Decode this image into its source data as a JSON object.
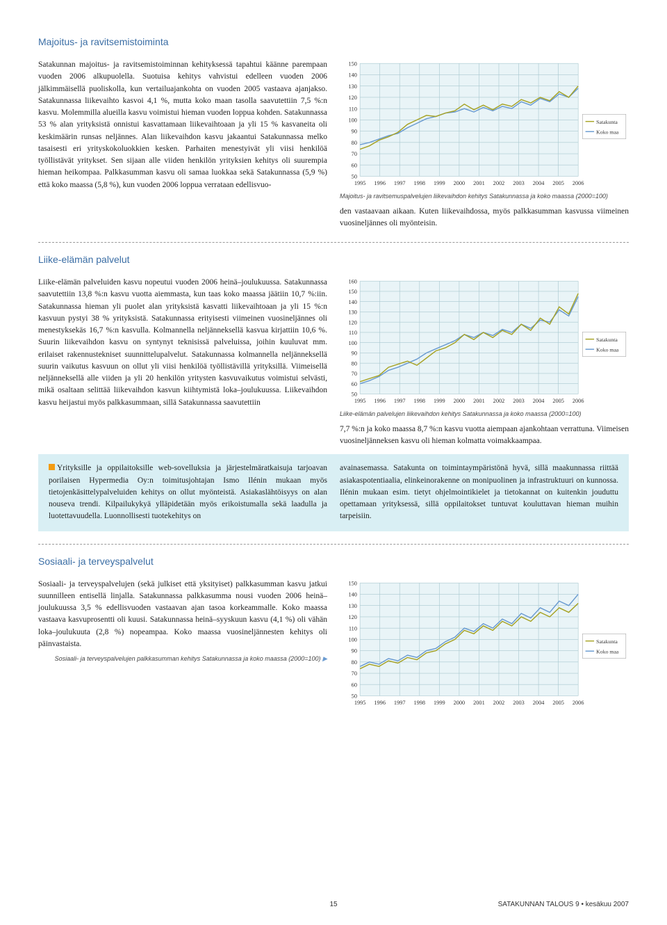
{
  "page": {
    "number": "15",
    "footer_right": "SATAKUNNAN TALOUS 9 • kesäkuu 2007"
  },
  "legend": {
    "series1": "Satakunta",
    "series2": "Koko maa"
  },
  "chart_common": {
    "xlabels": [
      "1995",
      "1996",
      "1997",
      "1998",
      "1999",
      "2000",
      "2001",
      "2002",
      "2003",
      "2004",
      "2005",
      "2006"
    ],
    "ymin": 50,
    "ymax_a": 150,
    "ymax_b": 160,
    "ystep": 10,
    "bg_color": "#e9f4f7",
    "grid_color": "#a9c8cf",
    "series1_color": "#a7a325",
    "series2_color": "#6a9bd1",
    "axis_fontsize": 8,
    "line_width": 1.4
  },
  "sec1": {
    "title": "Majoitus- ja ravitsemistoiminta",
    "body": "Satakunnan majoitus- ja ravitsemistoiminnan kehityksessä tapahtui käänne parempaan vuoden 2006 alkupuolella. Suotuisa kehitys vahvistui edelleen vuoden 2006 jälkimmäisellä puoliskolla, kun vertailuajankohta on vuoden 2005 vastaava ajanjakso. Satakunnassa liikevaihto kasvoi 4,1 %, mutta koko maan tasolla saavutettiin 7,5 %:n kasvu. Molemmilla alueilla kasvu voimistui hieman vuoden loppua kohden. Satakunnassa 53 % alan yrityksistä onnistui kasvattamaan liikevaihtoaan ja yli 15 % kasvaneita oli keskimäärin runsas neljännes. Alan liikevaihdon kasvu jakaantui Satakunnassa melko tasaisesti eri yrityskokoluokkien kesken. Parhaiten menestyivät yli viisi henkilöä työllistävät yritykset. Sen sijaan alle viiden henkilön yrityksien kehitys oli suurempia hieman heikompaa. Palkkasumman kasvu oli samaa luokkaa sekä Satakunnassa (5,9 %) että koko maassa (5,8 %), kun vuoden 2006 loppua verrataan edellisvuo-",
    "after": "den vastaavaan aikaan. Kuten liikevaihdossa, myös palkkasumman kasvussa viimeinen vuosineljännes oli myönteisin.",
    "caption": "Majoitus- ja ravitsemuspalvelujen liikevaihdon kehitys Satakunnassa ja koko maassa (2000=100)",
    "series1": [
      74,
      77,
      82,
      85,
      89,
      96,
      100,
      104,
      103,
      106,
      108,
      114,
      109,
      113,
      109,
      114,
      112,
      118,
      115,
      120,
      117,
      125,
      120,
      130
    ],
    "series2": [
      78,
      80,
      83,
      86,
      88,
      93,
      97,
      101,
      103,
      106,
      107,
      110,
      107,
      111,
      108,
      112,
      110,
      116,
      113,
      119,
      116,
      123,
      120,
      128
    ]
  },
  "sec2": {
    "title": "Liike-elämän palvelut",
    "body": "Liike-elämän palveluiden kasvu nopeutui vuoden 2006 heinä–joulukuussa. Satakunnassa saavutettiin 13,8 %:n kasvu vuotta aiemmasta, kun taas koko maassa jäätiin 10,7 %:iin. Satakunnassa hieman yli puolet alan yrityksistä kasvatti liikevaihtoaan ja yli 15 %:n kasvuun pystyi 38 % yrityksistä. Satakunnassa erityisesti viimeinen vuosineljännes oli menestyksekäs 16,7 %:n kasvulla. Kolmannella neljänneksellä kasvua kirjattiin 10,6 %. Suurin liikevaihdon kasvu on syntynyt teknisissä palveluissa, joihin kuuluvat mm. erilaiset rakennustekniset suunnittelupalvelut. Satakunnassa kolmannella neljänneksellä suurin vaikutus kasvuun on ollut yli viisi henkilöä työllistävillä yrityksillä. Viimeisellä neljänneksellä alle viiden ja yli 20 henkilön yritysten kasvuvaikutus voimistui selvästi, mikä osaltaan selittää liikevaihdon kasvun kiihtymistä loka–joulukuussa. Liikevaihdon kasvu heijastui myös palkkasummaan, sillä Satakunnassa saavutettiin",
    "after": "7,7 %:n ja koko maassa 8,7 %:n kasvu vuotta aiempaan ajankohtaan verrattuna. Viimeisen vuosineljänneksen kasvu oli hieman kolmatta voimakkaampaa.",
    "caption": "Liike-elämän palvelujen liikevaihdon kehitys Satakunnassa ja koko maassa (2000=100)",
    "series1": [
      62,
      65,
      68,
      76,
      79,
      82,
      78,
      85,
      92,
      95,
      100,
      108,
      103,
      110,
      105,
      112,
      108,
      118,
      112,
      124,
      118,
      135,
      128,
      148
    ],
    "series2": [
      60,
      63,
      67,
      73,
      76,
      80,
      84,
      90,
      94,
      98,
      102,
      108,
      105,
      110,
      107,
      113,
      110,
      118,
      114,
      122,
      120,
      132,
      126,
      145
    ]
  },
  "infobox": {
    "left": "Yrityksille ja oppilaitoksille web-sovelluksia ja järjestelmäratkaisuja tarjoavan porilaisen Hypermedia Oy:n toimitusjohtajan Ismo Ilénin mukaan myös tietojenkäsittelypalveluiden kehitys on ollut myönteistä. Asiakaslähtöisyys on alan nouseva trendi. Kilpailukykyä ylläpidetään myös erikoistumalla sekä laadulla ja luotettavuudella. Luonnollisesti tuotekehitys on",
    "right": "avainasemassa. Satakunta on toimintaympäristönä hyvä, sillä maakunnassa riittää asiakaspotentiaalia, elinkeinorakenne on monipuolinen ja infrastruktuuri on kunnossa. Ilénin mukaan esim. tietyt ohjelmointikielet ja tietokannat on kuitenkin jouduttu opettamaan yrityksessä, sillä oppilaitokset tuntuvat kouluttavan hieman muihin tarpeisiin."
  },
  "sec3": {
    "title": "Sosiaali- ja terveyspalvelut",
    "body": "Sosiaali- ja terveyspalvelujen (sekä julkiset että yksityiset) palkkasumman kasvu jatkui suunnilleen entisellä linjalla. Satakunnassa palkkasumma nousi vuoden 2006 heinä–joulukuussa 3,5 % edellisvuoden vastaavan ajan tasoa korkeammalle. Koko maassa vastaava kasvuprosentti oli kuusi. Satakunnassa heinä–syyskuun kasvu (4,1 %) oli vähän loka–joulukuuta (2,8 %) nopeampaa. Koko maassa vuosineljännesten kehitys oli päinvastaista.",
    "caption": "Sosiaali- ja terveyspalvelujen palkkasumman kehitys Satakunnassa ja koko maassa (2000=100)",
    "arrow": "▶",
    "series1": [
      74,
      78,
      76,
      81,
      79,
      84,
      82,
      88,
      90,
      96,
      100,
      108,
      105,
      112,
      108,
      116,
      112,
      120,
      116,
      124,
      120,
      128,
      124,
      132
    ],
    "series2": [
      76,
      80,
      78,
      83,
      81,
      86,
      84,
      90,
      92,
      98,
      102,
      110,
      107,
      114,
      110,
      118,
      114,
      123,
      119,
      128,
      124,
      134,
      130,
      140
    ]
  }
}
